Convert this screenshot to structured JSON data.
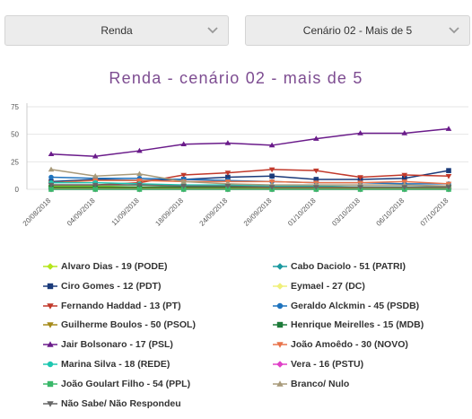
{
  "filters": {
    "renda_label": "Renda",
    "cenario_label": "Cenário 02 - Mais de 5"
  },
  "icons": {
    "dropdown_chevron": "chevron-down-icon"
  },
  "chart_data": {
    "type": "line",
    "title": "Renda - cenário 02 - mais de 5",
    "xlabel": "",
    "ylabel": "",
    "ylim": [
      0,
      75
    ],
    "yticks": [
      0,
      25,
      50,
      75
    ],
    "grid": true,
    "legend_position": "bottom",
    "x": [
      "20/08/2018",
      "04/09/2018",
      "11/09/2018",
      "18/09/2018",
      "24/09/2018",
      "26/09/2018",
      "01/10/2018",
      "03/10/2018",
      "06/10/2018",
      "07/10/2018"
    ],
    "series": [
      {
        "name": "Alvaro Dias - 19 (PODE)",
        "color": "#b5e61d",
        "marker": "diamond",
        "values": [
          3,
          3,
          2,
          2,
          2,
          2,
          1,
          1,
          1,
          1
        ]
      },
      {
        "name": "Cabo Daciolo - 51 (PATRI)",
        "color": "#1c9aa0",
        "marker": "diamond",
        "values": [
          1,
          1,
          1,
          1,
          1,
          1,
          1,
          1,
          1,
          1
        ]
      },
      {
        "name": "Ciro Gomes - 12 (PDT)",
        "color": "#1a3a7a",
        "marker": "square",
        "values": [
          7,
          9,
          8,
          9,
          11,
          12,
          9,
          9,
          10,
          17
        ]
      },
      {
        "name": "Eymael - 27 (DC)",
        "color": "#f0f07a",
        "marker": "diamond",
        "values": [
          0,
          0,
          0,
          0,
          0,
          0,
          0,
          0,
          0,
          0
        ]
      },
      {
        "name": "Fernando Haddad - 13 (PT)",
        "color": "#c1392b",
        "marker": "triangle-down",
        "values": [
          4,
          4,
          6,
          13,
          15,
          18,
          17,
          11,
          13,
          12
        ]
      },
      {
        "name": "Geraldo Alckmin - 45 (PSDB)",
        "color": "#1e73be",
        "marker": "circle",
        "values": [
          11,
          10,
          10,
          9,
          8,
          7,
          6,
          6,
          5,
          5
        ]
      },
      {
        "name": "Guilherme Boulos - 50 (PSOL)",
        "color": "#a58a1a",
        "marker": "triangle-down",
        "values": [
          1,
          1,
          1,
          1,
          1,
          1,
          1,
          1,
          1,
          1
        ]
      },
      {
        "name": "Henrique Meirelles - 15 (MDB)",
        "color": "#1e7b3a",
        "marker": "square",
        "values": [
          2,
          2,
          2,
          2,
          2,
          2,
          2,
          2,
          2,
          2
        ]
      },
      {
        "name": "Jair Bolsonaro - 17 (PSL)",
        "color": "#6a1b8a",
        "marker": "triangle-up",
        "values": [
          32,
          30,
          35,
          41,
          42,
          40,
          46,
          51,
          51,
          55
        ]
      },
      {
        "name": "João Amoêdo - 30 (NOVO)",
        "color": "#e8734a",
        "marker": "triangle-down",
        "values": [
          6,
          8,
          8,
          7,
          7,
          7,
          6,
          6,
          7,
          5
        ]
      },
      {
        "name": "Marina Silva - 18 (REDE)",
        "color": "#1ec7b0",
        "marker": "circle",
        "values": [
          6,
          6,
          5,
          4,
          4,
          3,
          3,
          2,
          2,
          2
        ]
      },
      {
        "name": "Vera - 16 (PSTU)",
        "color": "#e040c8",
        "marker": "diamond",
        "values": [
          0,
          0,
          0,
          0,
          0,
          0,
          0,
          0,
          0,
          0
        ]
      },
      {
        "name": "João Goulart Filho - 54 (PPL)",
        "color": "#3ab86a",
        "marker": "square",
        "values": [
          0,
          0,
          0,
          0,
          0,
          0,
          0,
          0,
          0,
          0
        ]
      },
      {
        "name": "Branco/ Nulo",
        "color": "#a89a7a",
        "marker": "triangle-up",
        "values": [
          18,
          12,
          14,
          7,
          5,
          4,
          4,
          4,
          4,
          3
        ]
      },
      {
        "name": "Não Sabe/ Não Respondeu",
        "color": "#666666",
        "marker": "triangle-down",
        "values": [
          4,
          4,
          4,
          3,
          3,
          2,
          2,
          2,
          2,
          2
        ]
      }
    ]
  }
}
